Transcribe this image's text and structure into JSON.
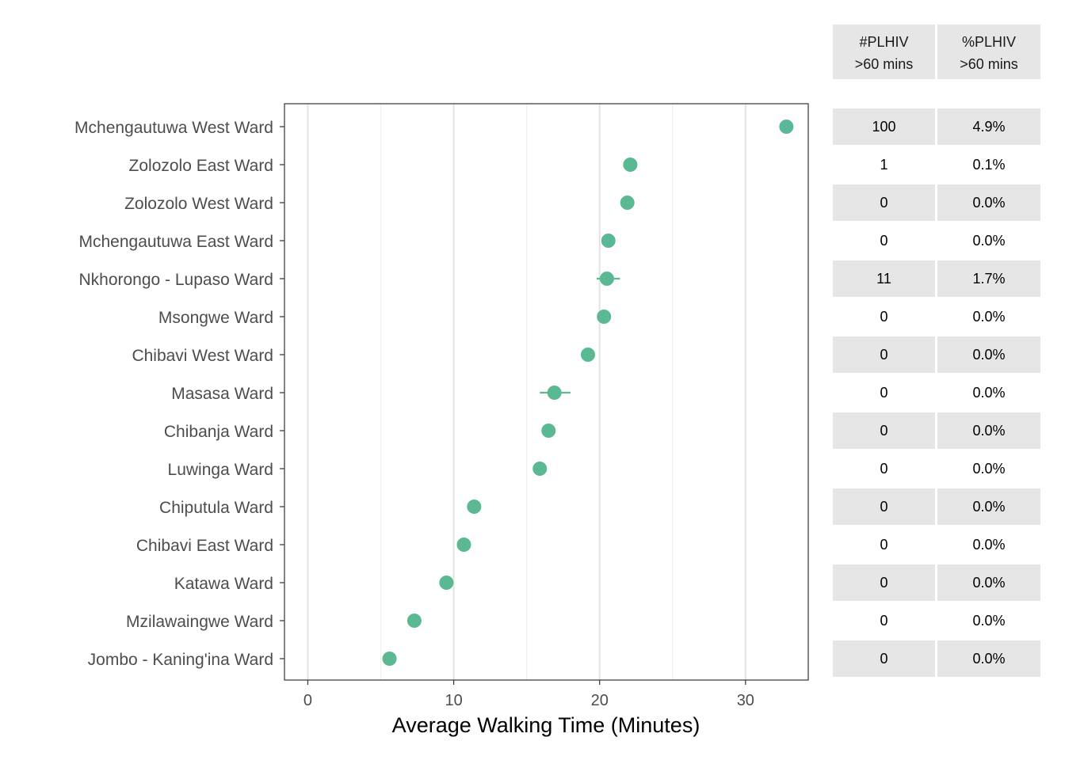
{
  "chart_data": {
    "type": "scatter",
    "xlabel": "Average Walking Time (Minutes)",
    "xlim": [
      -1.6,
      34.3
    ],
    "x_ticks": [
      0,
      10,
      20,
      30
    ],
    "x_tick_labels": [
      "0",
      "10",
      "20",
      "30"
    ],
    "grid": true,
    "point_color": "#5ab994",
    "table_headers": [
      {
        "line1": "#PLHIV",
        "line2": ">60 mins"
      },
      {
        "line1": "%PLHIV",
        "line2": ">60 mins"
      }
    ],
    "rows": [
      {
        "ward": "Mchengautuwa West Ward",
        "mean": 32.8,
        "lower": null,
        "upper": null,
        "plhiv_count": "100",
        "plhiv_pct": "4.9%"
      },
      {
        "ward": "Zolozolo East Ward",
        "mean": 22.1,
        "lower": null,
        "upper": null,
        "plhiv_count": "1",
        "plhiv_pct": "0.1%"
      },
      {
        "ward": "Zolozolo West Ward",
        "mean": 21.9,
        "lower": null,
        "upper": null,
        "plhiv_count": "0",
        "plhiv_pct": "0.0%"
      },
      {
        "ward": "Mchengautuwa East Ward",
        "mean": 20.6,
        "lower": null,
        "upper": null,
        "plhiv_count": "0",
        "plhiv_pct": "0.0%"
      },
      {
        "ward": "Nkhorongo - Lupaso Ward",
        "mean": 20.5,
        "lower": 19.8,
        "upper": 21.4,
        "plhiv_count": "11",
        "plhiv_pct": "1.7%"
      },
      {
        "ward": "Msongwe Ward",
        "mean": 20.3,
        "lower": null,
        "upper": null,
        "plhiv_count": "0",
        "plhiv_pct": "0.0%"
      },
      {
        "ward": "Chibavi West Ward",
        "mean": 19.2,
        "lower": null,
        "upper": null,
        "plhiv_count": "0",
        "plhiv_pct": "0.0%"
      },
      {
        "ward": "Masasa Ward",
        "mean": 16.9,
        "lower": 15.9,
        "upper": 18.0,
        "plhiv_count": "0",
        "plhiv_pct": "0.0%"
      },
      {
        "ward": "Chibanja Ward",
        "mean": 16.5,
        "lower": null,
        "upper": null,
        "plhiv_count": "0",
        "plhiv_pct": "0.0%"
      },
      {
        "ward": "Luwinga Ward",
        "mean": 15.9,
        "lower": null,
        "upper": null,
        "plhiv_count": "0",
        "plhiv_pct": "0.0%"
      },
      {
        "ward": "Chiputula Ward",
        "mean": 11.4,
        "lower": null,
        "upper": null,
        "plhiv_count": "0",
        "plhiv_pct": "0.0%"
      },
      {
        "ward": "Chibavi East Ward",
        "mean": 10.7,
        "lower": null,
        "upper": null,
        "plhiv_count": "0",
        "plhiv_pct": "0.0%"
      },
      {
        "ward": "Katawa Ward",
        "mean": 9.5,
        "lower": null,
        "upper": null,
        "plhiv_count": "0",
        "plhiv_pct": "0.0%"
      },
      {
        "ward": "Mzilawaingwe Ward",
        "mean": 7.3,
        "lower": null,
        "upper": null,
        "plhiv_count": "0",
        "plhiv_pct": "0.0%"
      },
      {
        "ward": "Jombo - Kaning'ina Ward",
        "mean": 5.6,
        "lower": null,
        "upper": null,
        "plhiv_count": "0",
        "plhiv_pct": "0.0%"
      }
    ]
  }
}
